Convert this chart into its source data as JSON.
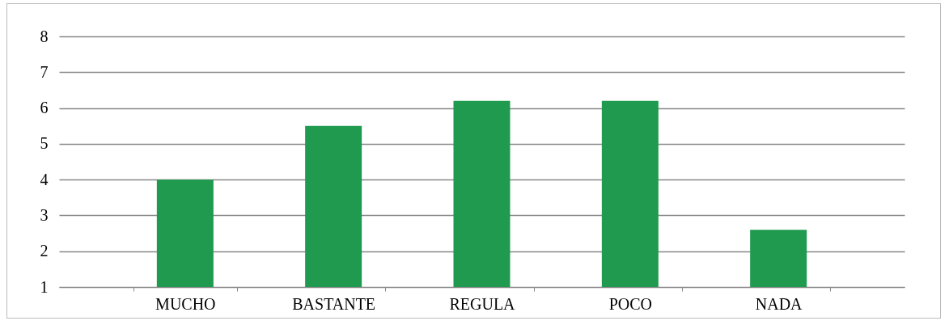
{
  "chart_data": {
    "type": "bar",
    "categories": [
      "MUCHO",
      "BASTANTE",
      "REGULA",
      "POCO",
      "NADA"
    ],
    "values": [
      4,
      5.5,
      6.2,
      6.2,
      2.6
    ],
    "color": "#1f9a4e",
    "ylim": [
      1,
      8
    ],
    "yticks": [
      1,
      2,
      3,
      4,
      5,
      6,
      7,
      8
    ],
    "grid": "y"
  }
}
